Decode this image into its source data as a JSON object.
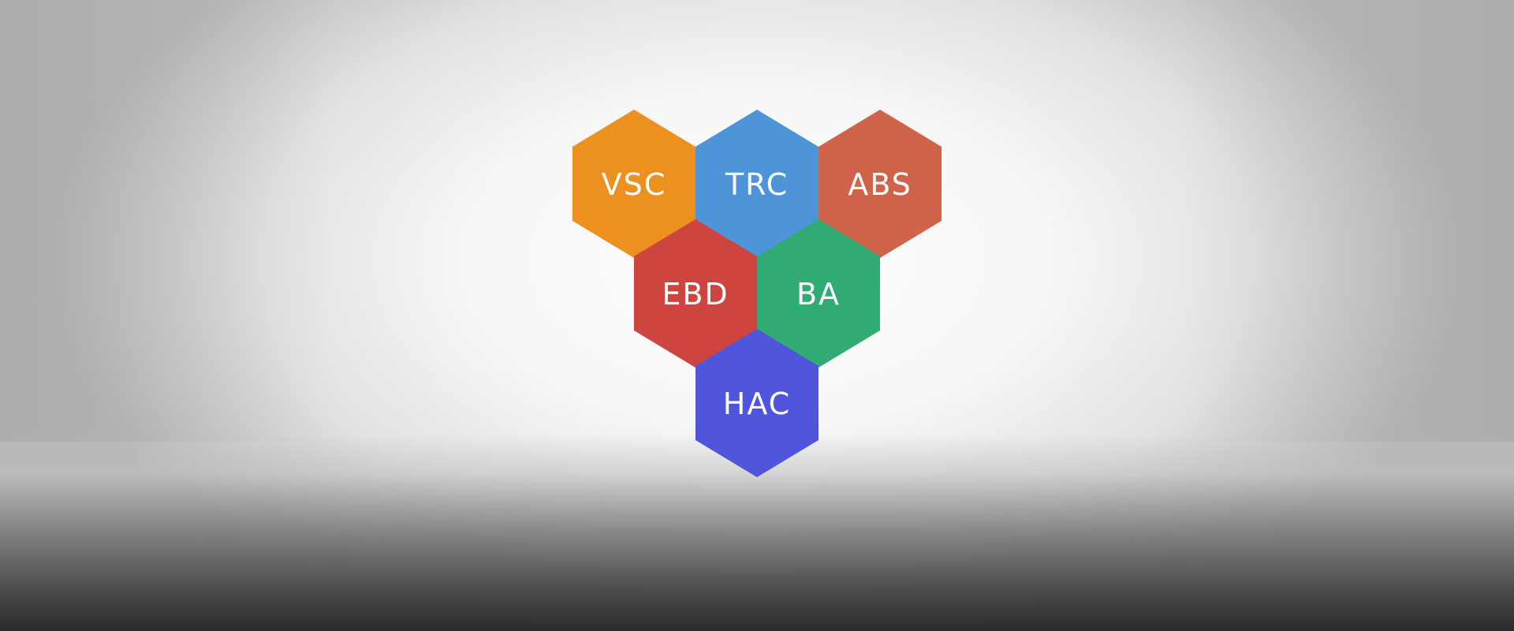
{
  "hexagons": [
    {
      "id": "vsc",
      "label": "VSC",
      "color": "#EC9020",
      "row": 0,
      "col": 0
    },
    {
      "id": "trc",
      "label": "TRC",
      "color": "#4E94D9",
      "row": 0,
      "col": 1
    },
    {
      "id": "abs",
      "label": "ABS",
      "color": "#D0644A",
      "row": 0,
      "col": 2
    },
    {
      "id": "ebd",
      "label": "EBD",
      "color": "#CE4540",
      "row": 1,
      "col": 0
    },
    {
      "id": "ba",
      "label": "BA",
      "color": "#30AB74",
      "row": 1,
      "col": 1
    },
    {
      "id": "hac",
      "label": "HAC",
      "color": "#4F56DC",
      "row": 2,
      "col": 0
    }
  ]
}
